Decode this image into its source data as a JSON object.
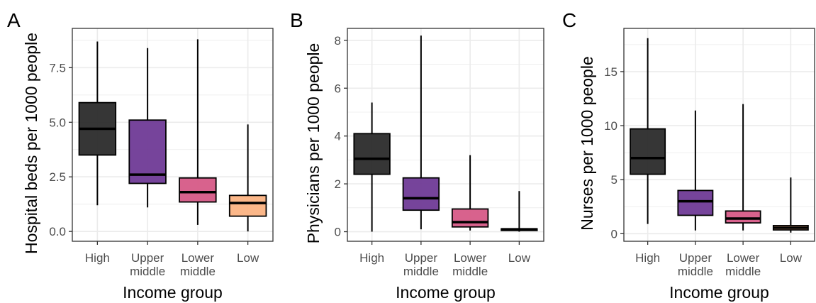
{
  "colors": {
    "High": "#2b2b2b",
    "Upper middle": "#6f3a96",
    "Lower middle": "#d65a87",
    "Low": "#fbb383",
    "grid": "#ebebeb",
    "panel_border": "#333333",
    "axis_text": "#4d4d4d"
  },
  "chart_data": [
    {
      "type": "box",
      "panel_label": "A",
      "xlabel": "Income group",
      "ylabel": "Hospital beds per 1000 people",
      "categories": [
        [
          "High"
        ],
        [
          "Upper",
          "middle"
        ],
        [
          "Lower",
          "middle"
        ],
        [
          "Low"
        ]
      ],
      "groups": [
        "High",
        "Upper middle",
        "Lower middle",
        "Low"
      ],
      "ylim": [
        -0.45,
        9.3
      ],
      "yticks": [
        0,
        2.5,
        5,
        7.5
      ],
      "ytick_labels": [
        "0.0",
        "2.5",
        "5.0",
        "7.5"
      ],
      "boxes": [
        {
          "group": "High",
          "min": 1.2,
          "q1": 3.5,
          "median": 4.7,
          "q3": 5.9,
          "max": 8.7
        },
        {
          "group": "Upper middle",
          "min": 1.1,
          "q1": 2.2,
          "median": 2.6,
          "q3": 5.1,
          "max": 8.4
        },
        {
          "group": "Lower middle",
          "min": 0.3,
          "q1": 1.35,
          "median": 1.8,
          "q3": 2.45,
          "max": 8.8
        },
        {
          "group": "Low",
          "min": 0.0,
          "q1": 0.7,
          "median": 1.3,
          "q3": 1.65,
          "max": 4.9
        }
      ],
      "grid": true
    },
    {
      "type": "box",
      "panel_label": "B",
      "xlabel": "Income group",
      "ylabel": "Physicians per 1000 people",
      "categories": [
        [
          "High"
        ],
        [
          "Upper",
          "middle"
        ],
        [
          "Lower",
          "middle"
        ],
        [
          "Low"
        ]
      ],
      "groups": [
        "High",
        "Upper middle",
        "Lower middle",
        "Low"
      ],
      "ylim": [
        -0.4,
        8.5
      ],
      "yticks": [
        0,
        2,
        4,
        6,
        8
      ],
      "ytick_labels": [
        "0",
        "2",
        "4",
        "6",
        "8"
      ],
      "boxes": [
        {
          "group": "High",
          "min": 0.0,
          "q1": 2.4,
          "median": 3.05,
          "q3": 4.1,
          "max": 5.4
        },
        {
          "group": "Upper middle",
          "min": 0.1,
          "q1": 0.9,
          "median": 1.4,
          "q3": 2.25,
          "max": 8.2
        },
        {
          "group": "Lower middle",
          "min": 0.05,
          "q1": 0.2,
          "median": 0.4,
          "q3": 0.95,
          "max": 3.2
        },
        {
          "group": "Low",
          "min": 0.0,
          "q1": 0.05,
          "median": 0.1,
          "q3": 0.12,
          "max": 1.7
        }
      ],
      "grid": true
    },
    {
      "type": "box",
      "panel_label": "C",
      "xlabel": "Income group",
      "ylabel": "Nurses per 1000 people",
      "categories": [
        [
          "High"
        ],
        [
          "Upper",
          "middle"
        ],
        [
          "Lower",
          "middle"
        ],
        [
          "Low"
        ]
      ],
      "groups": [
        "High",
        "Upper middle",
        "Lower middle",
        "Low"
      ],
      "ylim": [
        -0.7,
        19.0
      ],
      "yticks": [
        0,
        5,
        10,
        15
      ],
      "ytick_labels": [
        "0",
        "5",
        "10",
        "15"
      ],
      "boxes": [
        {
          "group": "High",
          "min": 0.9,
          "q1": 5.5,
          "median": 7.0,
          "q3": 9.7,
          "max": 18.1
        },
        {
          "group": "Upper middle",
          "min": 0.3,
          "q1": 1.7,
          "median": 3.0,
          "q3": 4.0,
          "max": 11.4
        },
        {
          "group": "Lower middle",
          "min": 0.3,
          "q1": 1.0,
          "median": 1.4,
          "q3": 2.1,
          "max": 12.0
        },
        {
          "group": "Low",
          "min": 0.1,
          "q1": 0.35,
          "median": 0.55,
          "q3": 0.75,
          "max": 5.2
        }
      ],
      "grid": true
    }
  ]
}
